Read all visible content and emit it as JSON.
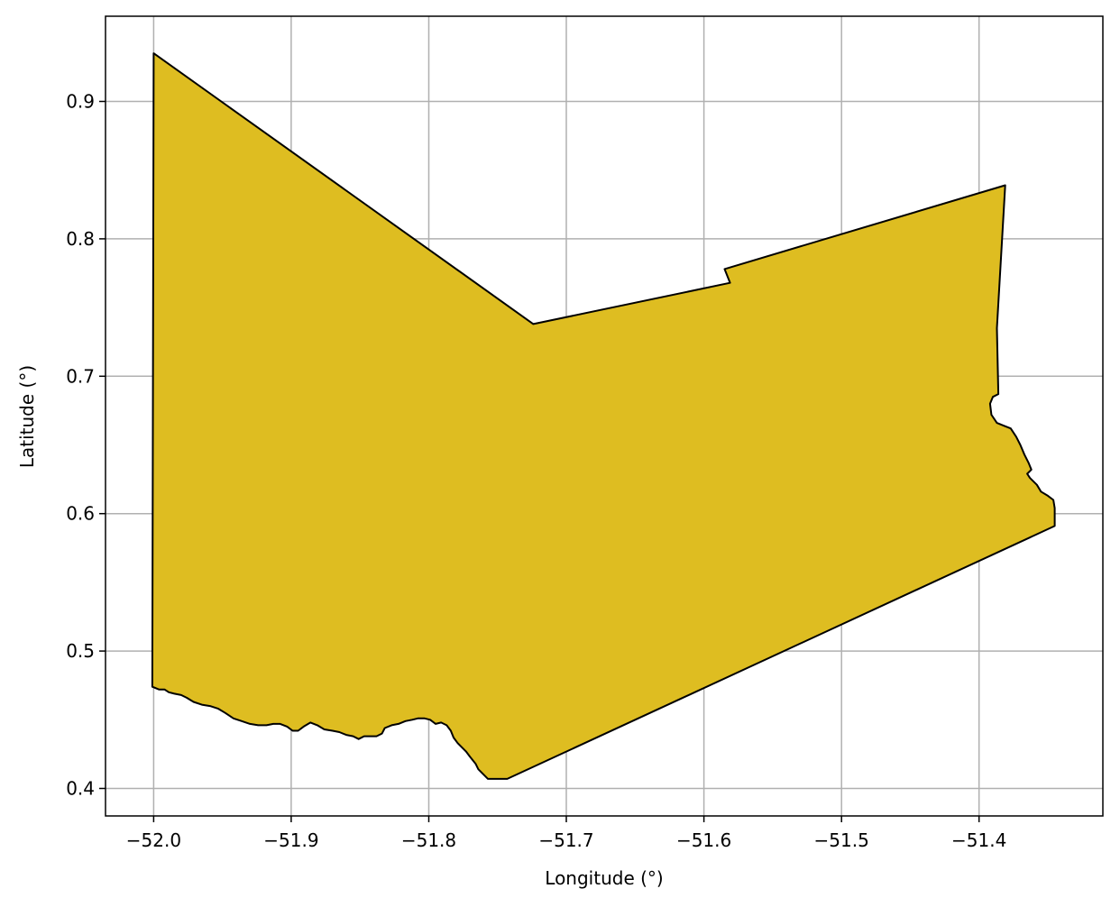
{
  "chart_data": {
    "type": "map",
    "title": "",
    "xlabel": "Longitude (°)",
    "ylabel": "Latitude (°)",
    "xlim": [
      -52.035,
      -51.31
    ],
    "ylim": [
      0.38,
      0.962
    ],
    "x_ticks": [
      -52.0,
      -51.9,
      -51.8,
      -51.7,
      -51.6,
      -51.5,
      -51.4
    ],
    "x_tick_labels": [
      "−52.0",
      "−51.9",
      "−51.8",
      "−51.7",
      "−51.6",
      "−51.5",
      "−51.4"
    ],
    "y_ticks": [
      0.4,
      0.5,
      0.6,
      0.7,
      0.8,
      0.9
    ],
    "y_tick_labels": [
      "0.4",
      "0.5",
      "0.6",
      "0.7",
      "0.8",
      "0.9"
    ],
    "grid": true,
    "fill_color": "#DEBD21",
    "edge_color": "#000000",
    "grid_color": "#B0B0B0",
    "region_outline": [
      [
        -52.0,
        0.935
      ],
      [
        -51.724,
        0.738
      ],
      [
        -51.581,
        0.768
      ],
      [
        -51.585,
        0.778
      ],
      [
        -51.381,
        0.839
      ],
      [
        -51.387,
        0.735
      ],
      [
        -51.386,
        0.687
      ],
      [
        -51.39,
        0.685
      ],
      [
        -51.392,
        0.68
      ],
      [
        -51.391,
        0.672
      ],
      [
        -51.387,
        0.666
      ],
      [
        -51.382,
        0.664
      ],
      [
        -51.377,
        0.662
      ],
      [
        -51.373,
        0.656
      ],
      [
        -51.37,
        0.65
      ],
      [
        -51.367,
        0.643
      ],
      [
        -51.364,
        0.637
      ],
      [
        -51.362,
        0.632
      ],
      [
        -51.365,
        0.629
      ],
      [
        -51.363,
        0.626
      ],
      [
        -51.358,
        0.621
      ],
      [
        -51.355,
        0.616
      ],
      [
        -51.35,
        0.613
      ],
      [
        -51.346,
        0.61
      ],
      [
        -51.345,
        0.604
      ],
      [
        -51.345,
        0.594
      ],
      [
        -51.345,
        0.591
      ],
      [
        -51.743,
        0.407
      ],
      [
        -51.748,
        0.407
      ],
      [
        -51.752,
        0.407
      ],
      [
        -51.757,
        0.407
      ],
      [
        -51.76,
        0.41
      ],
      [
        -51.764,
        0.414
      ],
      [
        -51.766,
        0.418
      ],
      [
        -51.77,
        0.423
      ],
      [
        -51.773,
        0.427
      ],
      [
        -51.776,
        0.43
      ],
      [
        -51.779,
        0.433
      ],
      [
        -51.782,
        0.437
      ],
      [
        -51.784,
        0.442
      ],
      [
        -51.787,
        0.446
      ],
      [
        -51.791,
        0.448
      ],
      [
        -51.795,
        0.447
      ],
      [
        -51.799,
        0.45
      ],
      [
        -51.803,
        0.451
      ],
      [
        -51.808,
        0.451
      ],
      [
        -51.812,
        0.45
      ],
      [
        -51.817,
        0.449
      ],
      [
        -51.822,
        0.447
      ],
      [
        -51.827,
        0.446
      ],
      [
        -51.832,
        0.444
      ],
      [
        -51.834,
        0.44
      ],
      [
        -51.838,
        0.438
      ],
      [
        -51.843,
        0.438
      ],
      [
        -51.847,
        0.438
      ],
      [
        -51.851,
        0.436
      ],
      [
        -51.855,
        0.438
      ],
      [
        -51.86,
        0.439
      ],
      [
        -51.865,
        0.441
      ],
      [
        -51.87,
        0.442
      ],
      [
        -51.876,
        0.443
      ],
      [
        -51.881,
        0.446
      ],
      [
        -51.886,
        0.448
      ],
      [
        -51.891,
        0.445
      ],
      [
        -51.895,
        0.442
      ],
      [
        -51.899,
        0.442
      ],
      [
        -51.903,
        0.445
      ],
      [
        -51.908,
        0.447
      ],
      [
        -51.913,
        0.447
      ],
      [
        -51.918,
        0.446
      ],
      [
        -51.924,
        0.446
      ],
      [
        -51.93,
        0.447
      ],
      [
        -51.936,
        0.449
      ],
      [
        -51.942,
        0.451
      ],
      [
        -51.948,
        0.455
      ],
      [
        -51.953,
        0.458
      ],
      [
        -51.959,
        0.46
      ],
      [
        -51.965,
        0.461
      ],
      [
        -51.971,
        0.463
      ],
      [
        -51.976,
        0.466
      ],
      [
        -51.98,
        0.468
      ],
      [
        -51.985,
        0.469
      ],
      [
        -51.989,
        0.47
      ],
      [
        -51.992,
        0.472
      ],
      [
        -51.996,
        0.472
      ],
      [
        -52.001,
        0.474
      ],
      [
        -52.0,
        0.935
      ]
    ]
  }
}
